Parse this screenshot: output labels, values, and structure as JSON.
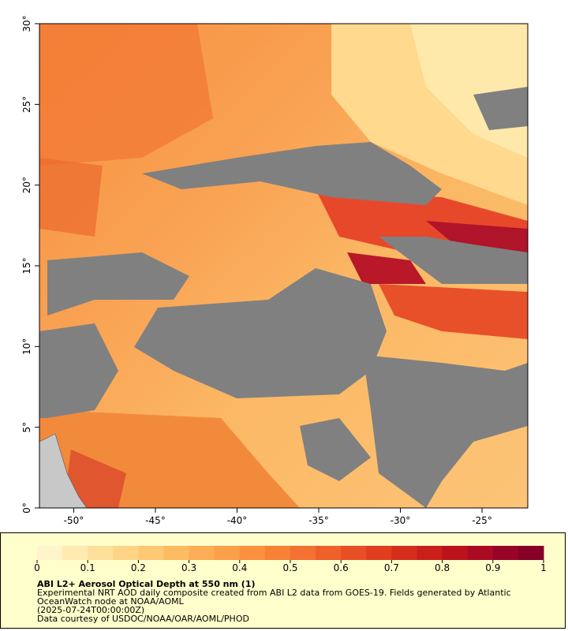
{
  "map": {
    "xlim": [
      -52.1,
      -22.2
    ],
    "ylim": [
      0,
      30
    ],
    "xticks": [
      {
        "value": -50,
        "label": "-50°"
      },
      {
        "value": -45,
        "label": "-45°"
      },
      {
        "value": -40,
        "label": "-40°"
      },
      {
        "value": -35,
        "label": "-35°"
      },
      {
        "value": -30,
        "label": "-30°"
      },
      {
        "value": -25,
        "label": "-25°"
      }
    ],
    "yticks": [
      {
        "value": 0,
        "label": "0°"
      },
      {
        "value": 5,
        "label": "5°"
      },
      {
        "value": 10,
        "label": "10°"
      },
      {
        "value": 15,
        "label": "15°"
      },
      {
        "value": 20,
        "label": "20°"
      },
      {
        "value": 25,
        "label": "25°"
      },
      {
        "value": 30,
        "label": "30°"
      }
    ]
  },
  "colorbar": {
    "lim": [
      0,
      1
    ],
    "ticks": [
      0,
      0.1,
      0.2,
      0.3,
      0.4,
      0.5,
      0.6,
      0.7,
      0.8,
      0.9,
      1
    ],
    "colors": [
      "#fff4cc",
      "#ffeab0",
      "#ffe09a",
      "#ffd585",
      "#ffc873",
      "#febb62",
      "#fdad55",
      "#fc9f4a",
      "#fa9040",
      "#f88138",
      "#f47131",
      "#ef602a",
      "#e84f24",
      "#e03e1f",
      "#d62e1c",
      "#ca1f1b",
      "#bb131e",
      "#aa0a22",
      "#980426",
      "#860027"
    ]
  },
  "legend": {
    "title": "ABI L2+ Aerosol Optical Depth at 550 nm (1)",
    "lines": [
      "Experimental NRT AOD daily composite created from ABI L2 data from GOES-19. Fields generated by Atlantic",
      "OceanWatch node at NOAA/AOML",
      "(2025-07-24T00:00:00Z)",
      "Data courtesy of USDOC/NOAA/OAR/AOML/PHOD"
    ]
  }
}
